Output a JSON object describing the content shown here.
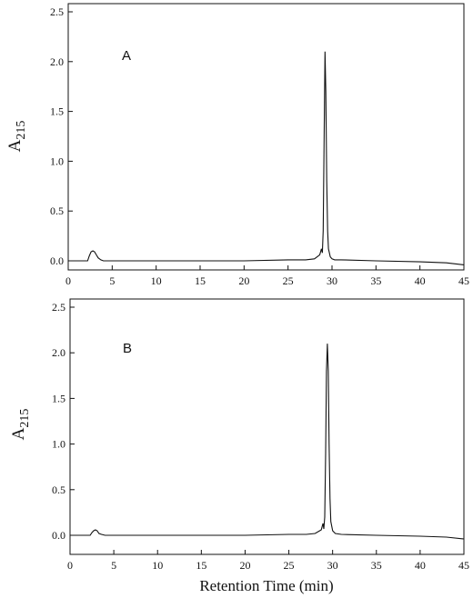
{
  "chart_data": [
    {
      "type": "line",
      "panel_label": "A",
      "xlabel": "",
      "ylabel": "A",
      "ylabel_sub": "215",
      "xlim": [
        0,
        45
      ],
      "ylim": [
        -0.05,
        2.55
      ],
      "xticks": [
        0,
        5,
        10,
        15,
        20,
        25,
        30,
        35,
        40,
        45
      ],
      "yticks": [
        0.0,
        0.5,
        1.0,
        1.5,
        2.0,
        2.5
      ],
      "ytick_labels": [
        "0.0",
        "0.5",
        "1.0",
        "1.5",
        "2.0",
        "2.5"
      ],
      "grid": false,
      "series": [
        {
          "x": [
            0,
            2.2,
            2.4,
            2.6,
            2.8,
            3.0,
            3.2,
            3.4,
            3.7,
            4.0,
            5,
            10,
            15,
            20,
            25,
            27,
            28,
            28.6,
            28.8,
            28.9,
            29.0,
            29.1,
            29.2,
            29.3,
            29.4,
            29.5,
            29.6,
            29.8,
            30.0,
            30.3,
            31,
            35,
            40,
            43,
            45
          ],
          "y": [
            0.0,
            0.0,
            0.05,
            0.09,
            0.1,
            0.09,
            0.06,
            0.03,
            0.01,
            0.0,
            0.0,
            0.0,
            0.0,
            0.0,
            0.01,
            0.01,
            0.02,
            0.06,
            0.12,
            0.08,
            0.3,
            1.2,
            2.1,
            1.7,
            0.8,
            0.3,
            0.12,
            0.04,
            0.02,
            0.01,
            0.01,
            0.0,
            -0.01,
            -0.02,
            -0.04
          ]
        }
      ]
    },
    {
      "type": "line",
      "panel_label": "B",
      "xlabel": "Retention Time (min)",
      "ylabel": "A",
      "ylabel_sub": "215",
      "xlim": [
        0,
        45
      ],
      "ylim": [
        -0.05,
        2.55
      ],
      "xticks": [
        0,
        5,
        10,
        15,
        20,
        25,
        30,
        35,
        40,
        45
      ],
      "yticks": [
        0.0,
        0.5,
        1.0,
        1.5,
        2.0,
        2.5
      ],
      "ytick_labels": [
        "0.0",
        "0.5",
        "1.0",
        "1.5",
        "2.0",
        "2.5"
      ],
      "grid": false,
      "series": [
        {
          "x": [
            0,
            2.3,
            2.5,
            2.7,
            2.9,
            3.1,
            3.3,
            3.6,
            4.0,
            5,
            10,
            15,
            20,
            25,
            27,
            28,
            28.7,
            28.9,
            29.0,
            29.1,
            29.2,
            29.3,
            29.4,
            29.5,
            29.6,
            29.7,
            29.8,
            30.0,
            30.3,
            31,
            35,
            40,
            43,
            45
          ],
          "y": [
            0.0,
            0.0,
            0.03,
            0.05,
            0.06,
            0.05,
            0.02,
            0.01,
            0.0,
            0.0,
            0.0,
            0.0,
            0.0,
            0.01,
            0.01,
            0.02,
            0.06,
            0.13,
            0.07,
            0.2,
            0.9,
            1.8,
            2.1,
            1.8,
            1.0,
            0.4,
            0.15,
            0.05,
            0.02,
            0.01,
            0.0,
            -0.01,
            -0.02,
            -0.04
          ]
        }
      ]
    }
  ]
}
